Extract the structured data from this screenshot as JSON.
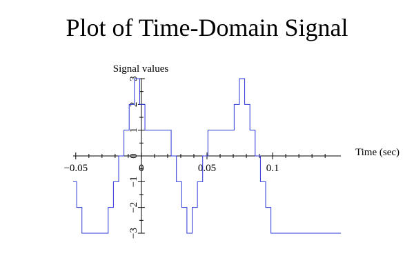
{
  "chart_data": {
    "type": "line",
    "title": "Plot of Time-Domain Signal",
    "xlabel": "Time (sec)",
    "ylabel": "Signal values",
    "xlim": [
      -0.052,
      0.152
    ],
    "ylim": [
      -3,
      3
    ],
    "grid": false,
    "color": "#2a35d8",
    "x_ticks": [
      -0.05,
      0,
      0.05,
      0.1
    ],
    "x_tick_labels": [
      "−0.05",
      "0",
      "0.05",
      "0.1"
    ],
    "x_minor_ticks": [
      -0.04,
      -0.03,
      -0.02,
      -0.01,
      0.01,
      0.02,
      0.03,
      0.04,
      0.06,
      0.07,
      0.08,
      0.09,
      0.11,
      0.12,
      0.13,
      0.14
    ],
    "y_ticks": [
      -3,
      -2,
      -1,
      0,
      1,
      2,
      3
    ],
    "y_tick_labels": [
      "−3",
      "−2",
      "−1",
      "0",
      "1",
      "2",
      "3"
    ],
    "series": [
      {
        "values_x": [
          -0.052,
          -0.0493,
          -0.0493,
          -0.0453,
          -0.0453,
          -0.0253,
          -0.0253,
          -0.0213,
          -0.0213,
          -0.0173,
          -0.0173,
          -0.0133,
          -0.0133,
          -0.0093,
          -0.0093,
          -0.0053,
          -0.0053,
          -0.0013,
          -0.0013,
          0.0027,
          0.0027,
          0.0227,
          0.0227,
          0.0267,
          0.0267,
          0.0307,
          0.0307,
          0.0347,
          0.0347,
          0.0387,
          0.0387,
          0.0427,
          0.0427,
          0.0467,
          0.0467,
          0.0507,
          0.0507,
          0.0707,
          0.0707,
          0.0747,
          0.0747,
          0.0787,
          0.0787,
          0.0827,
          0.0827,
          0.0867,
          0.0867,
          0.0907,
          0.0907,
          0.0947,
          0.0947,
          0.0987,
          0.0987,
          0.1187,
          0.1187,
          0.1227,
          0.1227,
          0.1267,
          0.1267,
          0.1307,
          0.1307,
          0.1347,
          0.1347,
          0.1387,
          0.1387,
          0.1427,
          0.1427,
          0.152
        ],
        "values_y": [
          -1,
          -1,
          -2,
          -2,
          -3,
          -3,
          -2,
          -2,
          -1,
          -1,
          0,
          0,
          1,
          1,
          2,
          2,
          3,
          3,
          2,
          2,
          1,
          1,
          0,
          0,
          -1,
          -1,
          -2,
          -2,
          -3,
          -3,
          -2,
          -2,
          -1,
          -1,
          0,
          0,
          1,
          1,
          2,
          2,
          3,
          3,
          2,
          2,
          1,
          1,
          0,
          0,
          -1,
          -1,
          -2,
          -2,
          -3,
          -3,
          -3,
          -3,
          -3,
          -3,
          -3,
          -3,
          -3,
          -3,
          -3,
          -3,
          -3,
          -3,
          -3,
          -3
        ]
      }
    ]
  }
}
